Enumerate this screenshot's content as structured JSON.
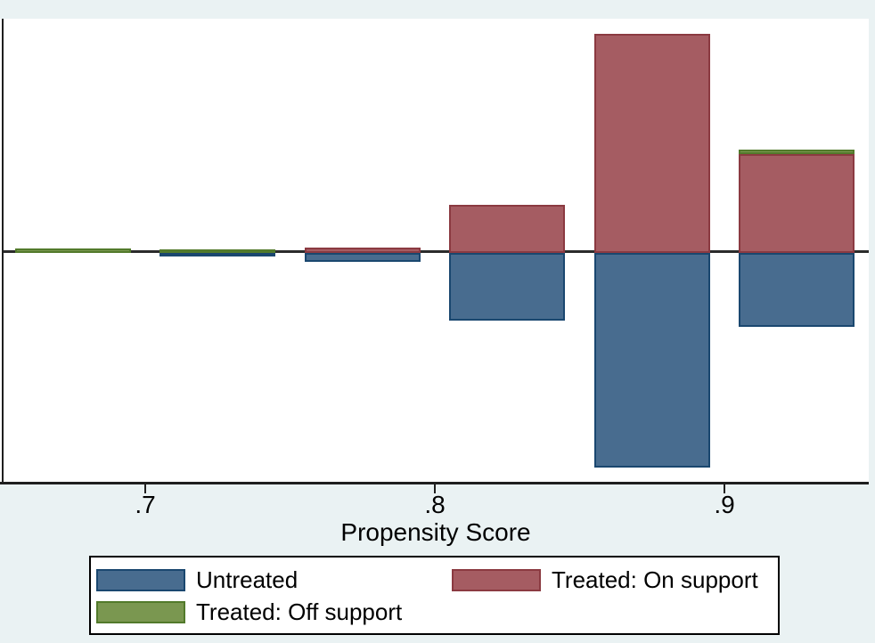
{
  "chart_data": {
    "type": "bar",
    "subtype": "mirrored_histogram_stata_psgraph",
    "title": "",
    "xlabel": "Propensity Score",
    "ylabel": "",
    "x_range": [
      0.65,
      0.95
    ],
    "y_axis_labels_visible": false,
    "grid": false,
    "bin_width": 0.05,
    "bar_visual_width": 0.04,
    "x_ticks": [
      {
        "value": 0.7,
        "label": ".7"
      },
      {
        "value": 0.8,
        "label": ".8"
      },
      {
        "value": 0.9,
        "label": ".9"
      }
    ],
    "orientation_note": "treated bars extend up from zero line, untreated bars extend down",
    "value_unit": "relative height (no y-axis scale shown), pixels in source image",
    "bins": [
      {
        "center": 0.675,
        "treated_on_support": 0,
        "treated_off_support": 5,
        "untreated": 0
      },
      {
        "center": 0.725,
        "treated_on_support": 0,
        "treated_off_support": 4,
        "untreated": 4
      },
      {
        "center": 0.775,
        "treated_on_support": 6,
        "treated_off_support": 0,
        "untreated": 10
      },
      {
        "center": 0.825,
        "treated_on_support": 54,
        "treated_off_support": 0,
        "untreated": 76
      },
      {
        "center": 0.875,
        "treated_on_support": 246,
        "treated_off_support": 0,
        "untreated": 241
      },
      {
        "center": 0.925,
        "treated_on_support": 111,
        "treated_off_support": 5,
        "untreated": 83
      }
    ],
    "legend_position": "bottom"
  },
  "legend": {
    "items": [
      {
        "key": "untreated",
        "label": "Untreated"
      },
      {
        "key": "treated_on",
        "label": "Treated: On support"
      },
      {
        "key": "treated_off",
        "label": "Treated: Off support"
      }
    ]
  },
  "colors": {
    "background": "#eaf2f3",
    "plot_background": "#ffffff",
    "axis_line": "#1f1f1f",
    "zero_line": "#2b2b2b",
    "untreated_fill": "#486c8f",
    "untreated_border": "#1a476f",
    "treated_on_fill": "#a55c62",
    "treated_on_border": "#8b3a41",
    "treated_off_fill": "#7a9750",
    "treated_off_border": "#527a2b",
    "legend_border": "#000000",
    "text": "#000000"
  }
}
